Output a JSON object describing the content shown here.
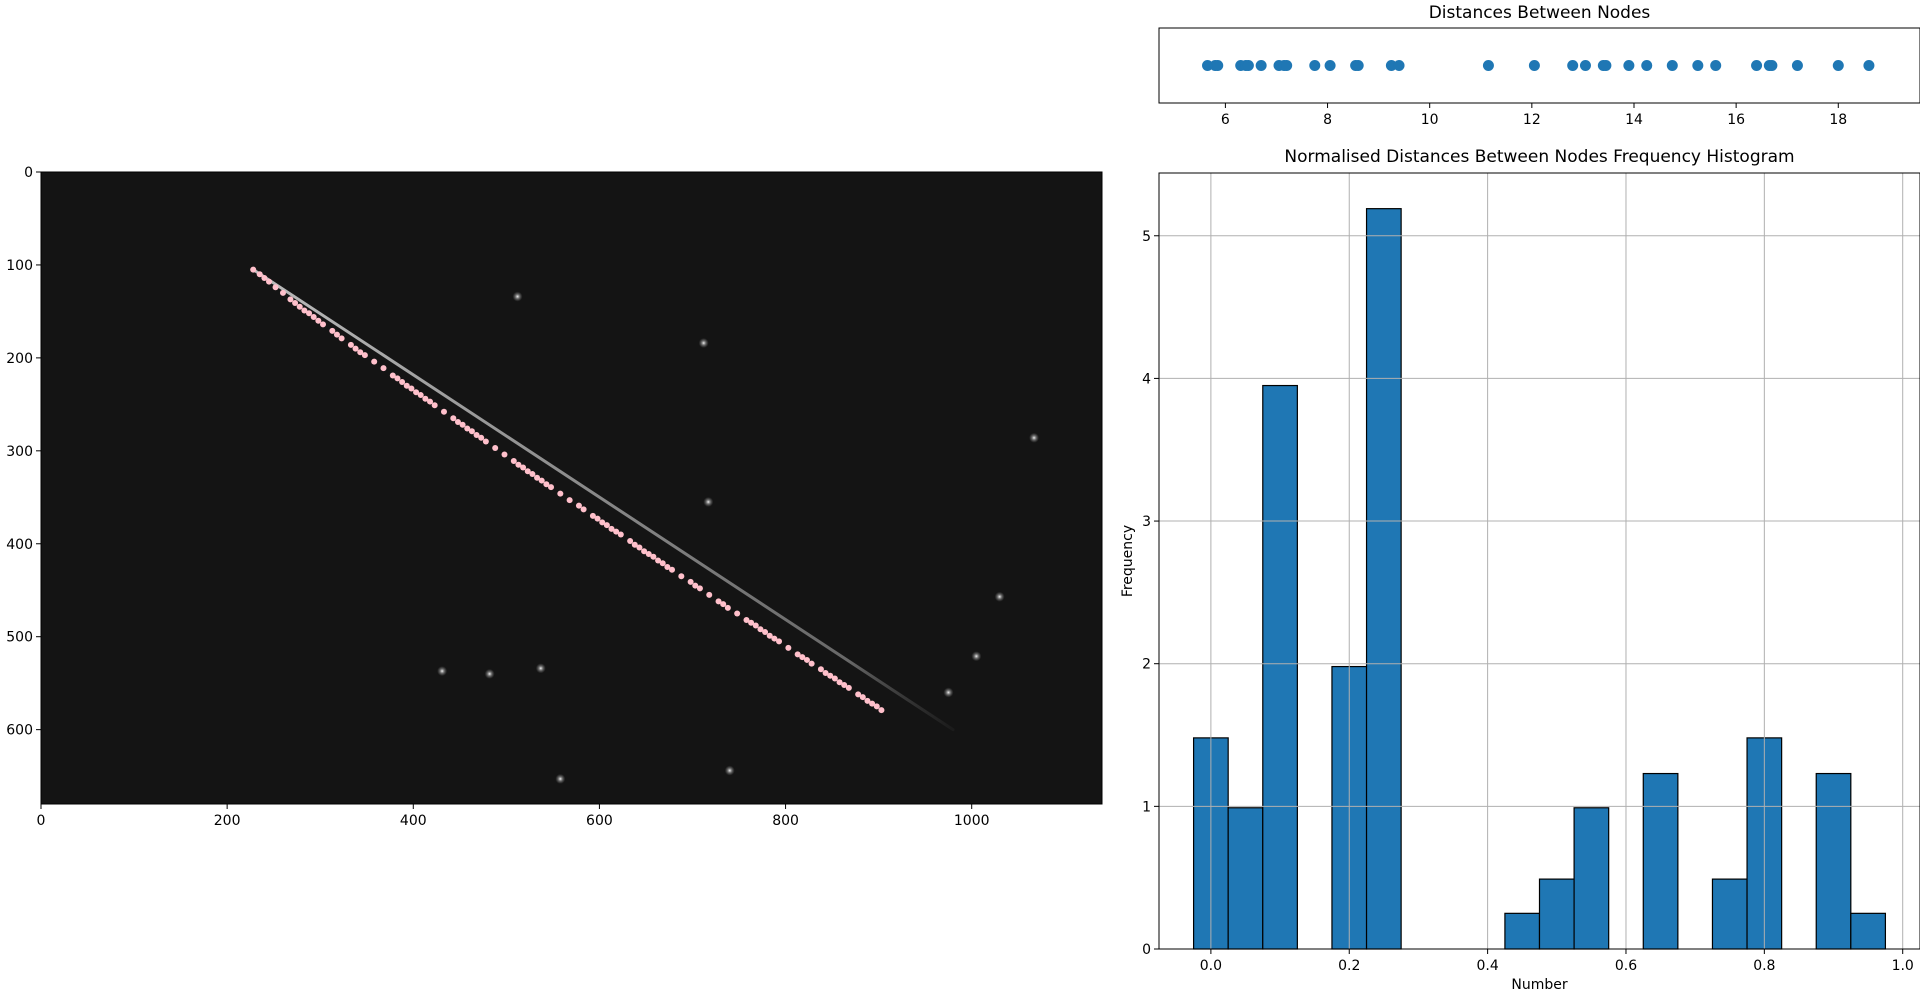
{
  "chart_data": [
    {
      "type": "image",
      "title": "",
      "xlim": [
        0,
        1140
      ],
      "ylim": [
        680,
        0
      ],
      "xticks": [
        0,
        200,
        400,
        600,
        800,
        1000
      ],
      "yticks": [
        0,
        100,
        200,
        300,
        400,
        500,
        600
      ],
      "background_color": "#141414",
      "marker_color": "#ffc0cb",
      "stars": [
        {
          "x": 512,
          "y": 134
        },
        {
          "x": 717,
          "y": 355
        },
        {
          "x": 431,
          "y": 537
        },
        {
          "x": 482,
          "y": 540
        },
        {
          "x": 537,
          "y": 534
        },
        {
          "x": 975,
          "y": 560
        },
        {
          "x": 1005,
          "y": 521
        },
        {
          "x": 1030,
          "y": 457
        },
        {
          "x": 1067,
          "y": 286
        },
        {
          "x": 712,
          "y": 184
        },
        {
          "x": 740,
          "y": 644
        },
        {
          "x": 558,
          "y": 653
        }
      ],
      "streak": {
        "x": [
          228,
          980
        ],
        "y": [
          105,
          600
        ]
      },
      "nodes": {
        "x": [
          228,
          235,
          240,
          245,
          252,
          260,
          268,
          273,
          278,
          283,
          288,
          293,
          298,
          303,
          313,
          318,
          323,
          333,
          338,
          343,
          348,
          358,
          368,
          378,
          383,
          388,
          393,
          398,
          403,
          408,
          413,
          418,
          423,
          433,
          443,
          448,
          453,
          458,
          463,
          468,
          473,
          478,
          488,
          498,
          508,
          513,
          518,
          523,
          528,
          533,
          538,
          543,
          548,
          558,
          568,
          578,
          583,
          593,
          598,
          603,
          608,
          613,
          618,
          623,
          633,
          638,
          643,
          648,
          653,
          658,
          663,
          668,
          673,
          678,
          688,
          698,
          703,
          708,
          718,
          728,
          733,
          738,
          748,
          758,
          763,
          768,
          773,
          778,
          783,
          788,
          793,
          803,
          813,
          818,
          823,
          828,
          838,
          843,
          848,
          853,
          858,
          863,
          868,
          878,
          883,
          888,
          893,
          898,
          903
        ],
        "y": [
          105,
          110,
          114,
          118,
          124,
          130,
          137,
          141,
          145,
          149,
          152,
          156,
          160,
          164,
          171,
          175,
          179,
          186,
          190,
          194,
          197,
          204,
          211,
          219,
          222,
          226,
          230,
          233,
          237,
          240,
          244,
          247,
          251,
          258,
          265,
          269,
          272,
          276,
          279,
          283,
          286,
          290,
          297,
          304,
          311,
          315,
          318,
          322,
          325,
          329,
          332,
          336,
          339,
          346,
          353,
          359,
          363,
          370,
          373,
          377,
          380,
          384,
          387,
          390,
          397,
          401,
          404,
          408,
          411,
          414,
          418,
          421,
          425,
          428,
          435,
          441,
          445,
          448,
          455,
          462,
          465,
          469,
          475,
          482,
          485,
          488,
          492,
          495,
          499,
          502,
          505,
          512,
          519,
          522,
          525,
          529,
          535,
          539,
          542,
          545,
          549,
          552,
          555,
          562,
          565,
          569,
          572,
          575,
          579
        ]
      }
    },
    {
      "type": "scatter",
      "title": "Distances Between Nodes",
      "xlim": [
        4.7,
        19.6
      ],
      "ylim": [
        -1,
        1
      ],
      "xticks": [
        6,
        8,
        10,
        12,
        14,
        16,
        18
      ],
      "color": "#1f77b4",
      "x": [
        5.65,
        5.8,
        5.85,
        6.3,
        6.4,
        6.45,
        6.7,
        7.05,
        7.15,
        7.2,
        7.75,
        8.05,
        8.55,
        8.6,
        9.25,
        9.4,
        11.15,
        12.05,
        12.8,
        13.05,
        13.4,
        13.45,
        13.9,
        14.25,
        14.75,
        15.25,
        15.6,
        16.4,
        16.65,
        16.7,
        17.2,
        18.0,
        18.6
      ],
      "y": [
        0,
        0,
        0,
        0,
        0,
        0,
        0,
        0,
        0,
        0,
        0,
        0,
        0,
        0,
        0,
        0,
        0,
        0,
        0,
        0,
        0,
        0,
        0,
        0,
        0,
        0,
        0,
        0,
        0,
        0,
        0,
        0,
        0
      ]
    },
    {
      "type": "bar",
      "title": "Normalised Distances Between Nodes Frequency Histogram",
      "xlabel": "Number",
      "ylabel": "Frequency",
      "xlim": [
        -0.075,
        1.025
      ],
      "ylim": [
        0,
        5.44
      ],
      "xticks": [
        0.0,
        0.2,
        0.4,
        0.6,
        0.8,
        1.0
      ],
      "xtick_labels": [
        "0.0",
        "0.2",
        "0.4",
        "0.6",
        "0.8",
        "1.0"
      ],
      "yticks": [
        0,
        1,
        2,
        3,
        4,
        5
      ],
      "grid": true,
      "color": "#1f77b4",
      "bin_width": 0.05,
      "bin_left": [
        -0.025,
        0.025,
        0.075,
        0.175,
        0.225,
        0.425,
        0.475,
        0.525,
        0.625,
        0.725,
        0.775,
        0.875,
        0.925
      ],
      "values": [
        1.48,
        0.99,
        3.95,
        1.98,
        5.19,
        0.25,
        0.49,
        0.99,
        1.23,
        0.49,
        1.48,
        1.23,
        0.25
      ]
    }
  ]
}
